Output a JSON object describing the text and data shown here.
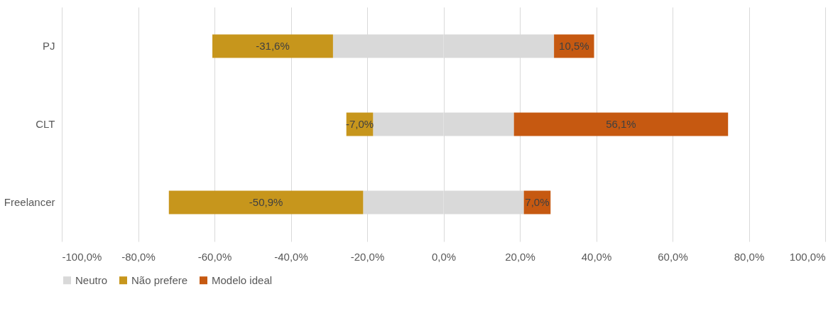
{
  "chart_data": {
    "type": "bar",
    "orientation": "horizontal",
    "stacked": true,
    "categories": [
      "PJ",
      "CLT",
      "Freelancer"
    ],
    "series": [
      {
        "name": "Neutro",
        "color": "#d9d9d9",
        "values": [
          -28.95,
          -18.45,
          -21.05
        ]
      },
      {
        "color": "#d9d9d9",
        "values": [
          28.95,
          18.45,
          21.05
        ]
      },
      {
        "name": "Não prefere",
        "color": "#c7961c",
        "values": [
          -31.6,
          -7.0,
          -50.9
        ],
        "value_labels": [
          "-31,6%",
          "-7,0%",
          "-50,9%"
        ]
      },
      {
        "name": "Modelo ideal",
        "color": "#c65911",
        "values": [
          10.5,
          56.1,
          7.0
        ],
        "value_labels": [
          "10,5%",
          "56,1%",
          "7,0%"
        ]
      }
    ],
    "xlim": [
      -100,
      100
    ],
    "xticks": [
      {
        "value": -100,
        "label": "-100,0%"
      },
      {
        "value": -80,
        "label": "-80,0%"
      },
      {
        "value": -60,
        "label": "-60,0%"
      },
      {
        "value": -40,
        "label": "-40,0%"
      },
      {
        "value": -20,
        "label": "-20,0%"
      },
      {
        "value": 0,
        "label": "0,0%"
      },
      {
        "value": 20,
        "label": "20,0%"
      },
      {
        "value": 40,
        "label": "40,0%"
      },
      {
        "value": 60,
        "label": "60,0%"
      },
      {
        "value": 80,
        "label": "80,0%"
      },
      {
        "value": 100,
        "label": "100,0%"
      }
    ],
    "grid": "x",
    "legend": "bottom"
  }
}
